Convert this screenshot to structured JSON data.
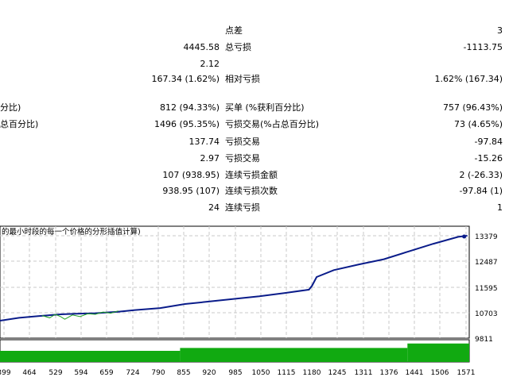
{
  "report": {
    "rows": [
      {
        "left_label": "",
        "left_value": "",
        "mid_label": "点差",
        "mid_value": "3"
      },
      {
        "left_label": "",
        "left_value": "4445.58",
        "mid_label": "总亏损",
        "mid_value": "-1113.75"
      },
      {
        "left_label": "",
        "left_value": "2.12",
        "mid_label": "",
        "mid_value": ""
      },
      {
        "left_label": "",
        "left_value": "167.34 (1.62%)",
        "mid_label": "相对亏损",
        "mid_value": "1.62% (167.34)"
      },
      {
        "left_label": "分比)",
        "left_value": "812 (94.33%)",
        "mid_label": "买单 (%获利百分比)",
        "mid_value": "757 (96.43%)"
      },
      {
        "left_label": "总百分比)",
        "left_value": "1496 (95.35%)",
        "mid_label": "亏损交易(%占总百分比)",
        "mid_value": "73 (4.65%)"
      },
      {
        "left_label": "",
        "left_value": "137.74",
        "mid_label": "亏损交易",
        "mid_value": "-97.84"
      },
      {
        "left_label": "",
        "left_value": "2.97",
        "mid_label": "亏损交易",
        "mid_value": "-15.26"
      },
      {
        "left_label": "",
        "left_value": "107 (938.95)",
        "mid_label": "连续亏损金额",
        "mid_value": "2 (-26.33)"
      },
      {
        "left_label": "",
        "left_value": "938.95 (107)",
        "mid_label": "连续亏损次数",
        "mid_value": "-97.84 (1)"
      },
      {
        "left_label": "",
        "left_value": "24",
        "mid_label": "连续亏损",
        "mid_value": "1"
      }
    ]
  },
  "chart": {
    "caption": "的最小时段的每一个价格的分形插值计算)",
    "colors": {
      "balance": "#0a1c8a",
      "equity": "#22a322",
      "volume": "#11aa11",
      "grid": "#c8c8c8"
    }
  },
  "chart_data": {
    "type": "line",
    "title": "",
    "xlabel": "",
    "ylabel": "",
    "x_ticks": [
      "399",
      "464",
      "529",
      "594",
      "659",
      "724",
      "790",
      "855",
      "920",
      "985",
      "1050",
      "1115",
      "1180",
      "1245",
      "1311",
      "1376",
      "1441",
      "1506",
      "1571"
    ],
    "y_ticks": [
      "13379",
      "12487",
      "11595",
      "10703",
      "9811"
    ],
    "ylim": [
      9811,
      13379
    ],
    "xlim": [
      370,
      1600
    ],
    "series": [
      {
        "role": "balance",
        "points": [
          [
            370,
            10420
          ],
          [
            420,
            10520
          ],
          [
            470,
            10580
          ],
          [
            529,
            10640
          ],
          [
            570,
            10660
          ],
          [
            620,
            10680
          ],
          [
            680,
            10730
          ],
          [
            724,
            10790
          ],
          [
            790,
            10860
          ],
          [
            855,
            11000
          ],
          [
            920,
            11090
          ],
          [
            985,
            11180
          ],
          [
            1050,
            11270
          ],
          [
            1115,
            11380
          ],
          [
            1180,
            11500
          ],
          [
            1188,
            11640
          ],
          [
            1200,
            11940
          ],
          [
            1245,
            12180
          ],
          [
            1311,
            12380
          ],
          [
            1376,
            12560
          ],
          [
            1441,
            12830
          ],
          [
            1506,
            13100
          ],
          [
            1571,
            13340
          ],
          [
            1595,
            13379
          ]
        ]
      },
      {
        "role": "equity",
        "points": [
          [
            480,
            10600
          ],
          [
            500,
            10520
          ],
          [
            515,
            10640
          ],
          [
            529,
            10560
          ],
          [
            540,
            10470
          ],
          [
            560,
            10620
          ],
          [
            580,
            10560
          ],
          [
            600,
            10660
          ],
          [
            620,
            10640
          ],
          [
            640,
            10720
          ],
          [
            660,
            10680
          ],
          [
            680,
            10760
          ]
        ]
      }
    ],
    "volume_bars": [
      {
        "from": 370,
        "to": 842,
        "level": 0.5
      },
      {
        "from": 842,
        "to": 1438,
        "level": 0.63
      },
      {
        "from": 1438,
        "to": 1600,
        "level": 0.83
      }
    ]
  }
}
